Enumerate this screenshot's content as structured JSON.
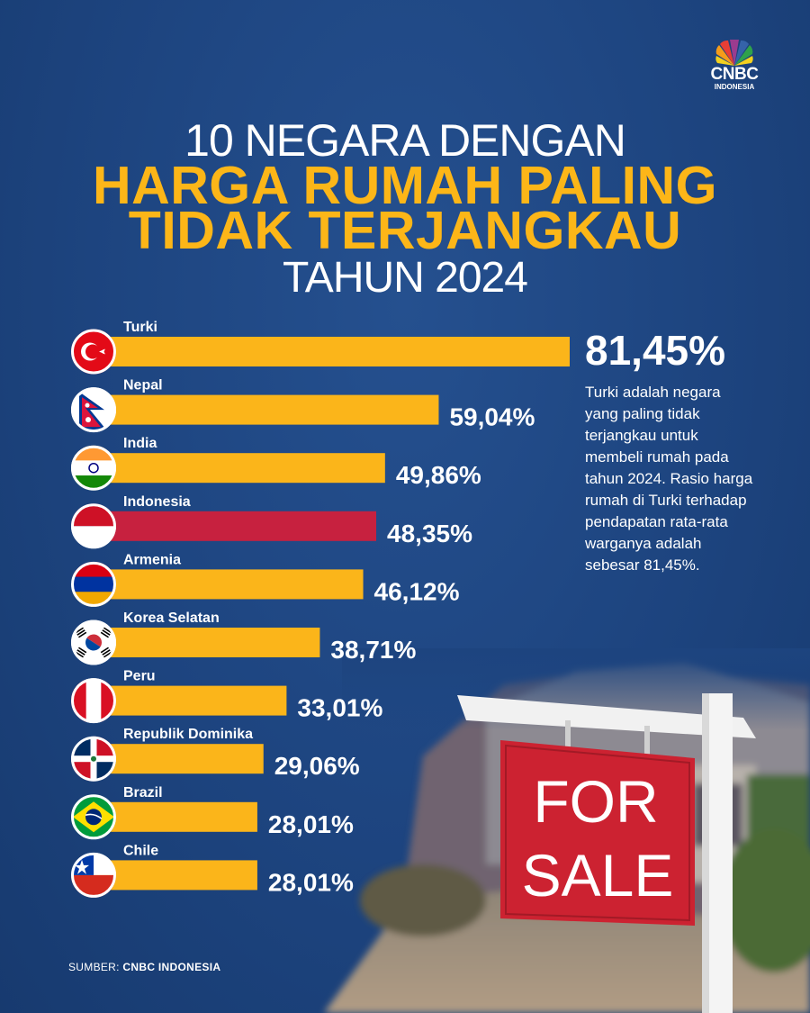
{
  "logo": {
    "line1": "CNBC",
    "line2": "INDONESIA"
  },
  "title": {
    "line1": "10 NEGARA DENGAN",
    "line2": "HARGA RUMAH PALING",
    "line3": "TIDAK TERJANGKAU",
    "line4": "TAHUN 2024"
  },
  "colors": {
    "bar": "#fbb51a",
    "highlight_bar": "#c7213f",
    "background": "#1d447f",
    "accent_text": "#fcb618"
  },
  "chart_data": {
    "type": "bar",
    "orientation": "horizontal",
    "categories": [
      "Turki",
      "Nepal",
      "India",
      "Indonesia",
      "Armenia",
      "Korea Selatan",
      "Peru",
      "Republik Dominika",
      "Brazil",
      "Chile"
    ],
    "values": [
      81.45,
      59.04,
      49.86,
      48.35,
      46.12,
      38.71,
      33.01,
      29.06,
      28.01,
      28.01
    ],
    "value_labels": [
      "81,45%",
      "59,04%",
      "49,86%",
      "48,35%",
      "46,12%",
      "38,71%",
      "33,01%",
      "29,06%",
      "28,01%",
      "28,01%"
    ],
    "highlight_category": "Indonesia",
    "xlim": [
      0,
      81.45
    ],
    "grid": false,
    "legend": "none"
  },
  "highlight": {
    "value": "81,45%",
    "note": "Turki adalah negara yang paling tidak terjangkau untuk membeli rumah pada tahun 2024. Rasio harga rumah di Turki terhadap pendapatan rata-rata warganya adalah sebesar 81,45%."
  },
  "sign": {
    "line1": "FOR",
    "line2": "SALE"
  },
  "source": {
    "label": "SUMBER:",
    "value": "CNBC INDONESIA"
  }
}
